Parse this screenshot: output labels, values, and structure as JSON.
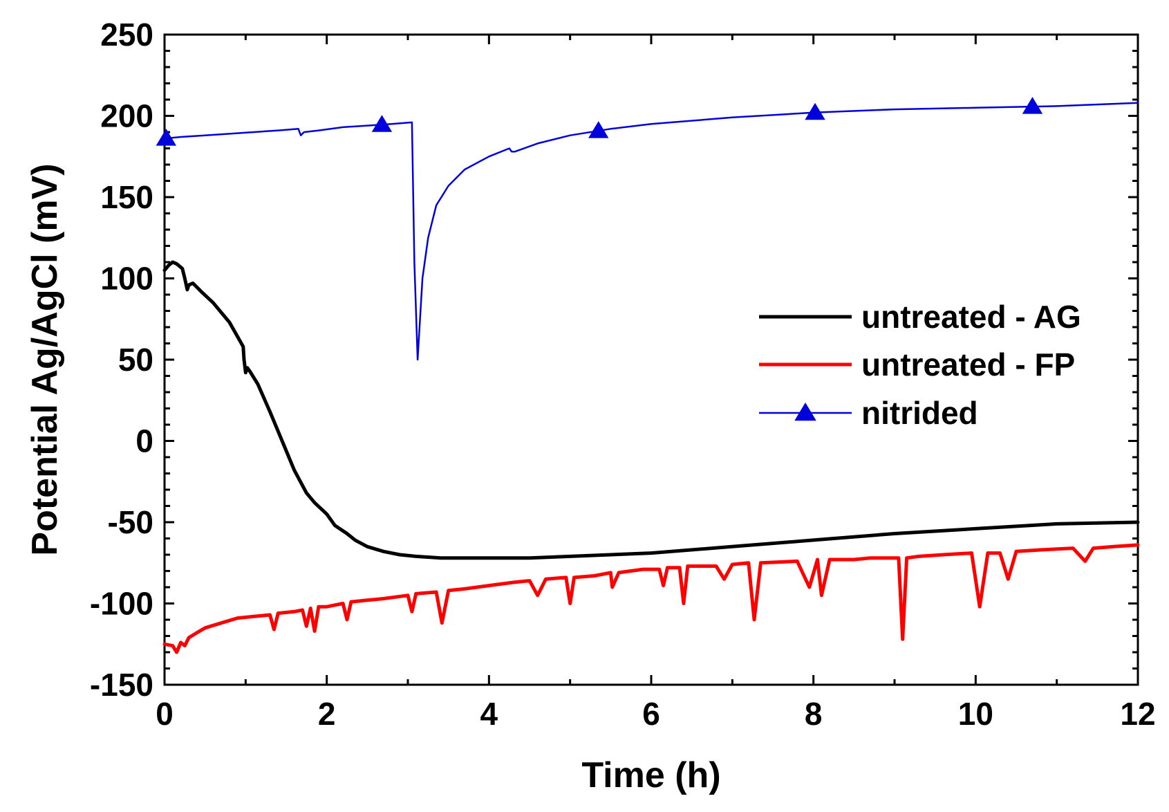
{
  "chart_data": {
    "type": "line",
    "title": "",
    "xlabel": "Time (h)",
    "ylabel": "Potential Ag/AgCl (mV)",
    "xlim": [
      0,
      12
    ],
    "ylim": [
      -150,
      250
    ],
    "xticks": [
      "0",
      "2",
      "4",
      "6",
      "8",
      "10",
      "12"
    ],
    "xtick_values": [
      0,
      2,
      4,
      6,
      8,
      10,
      12
    ],
    "yticks": [
      "250",
      "200",
      "150",
      "100",
      "50",
      "0",
      "-50",
      "-100",
      "-150"
    ],
    "ytick_values": [
      250,
      200,
      150,
      100,
      50,
      0,
      -50,
      -100,
      -150
    ],
    "grid": false,
    "legend_position": "center-right",
    "series": [
      {
        "name": "untreated - AG",
        "color": "#000000",
        "marker": "none",
        "x": [
          0,
          0.05,
          0.1,
          0.15,
          0.22,
          0.25,
          0.28,
          0.3,
          0.35,
          0.45,
          0.6,
          0.8,
          0.97,
          0.98,
          1.0,
          1.02,
          1.05,
          1.15,
          1.3,
          1.45,
          1.6,
          1.75,
          1.85,
          2.0,
          2.1,
          2.25,
          2.35,
          2.5,
          2.7,
          2.9,
          3.1,
          3.4,
          3.7,
          4.0,
          4.5,
          5.0,
          6.0,
          7.0,
          8.0,
          9.0,
          10.0,
          11.0,
          12.0
        ],
        "y": [
          105,
          108,
          110,
          109,
          106,
          100,
          93,
          96,
          97,
          92,
          85,
          73,
          58,
          50,
          42,
          45,
          43,
          35,
          18,
          0,
          -18,
          -32,
          -38,
          -45,
          -52,
          -57,
          -61,
          -65,
          -68,
          -70,
          -71,
          -72,
          -72,
          -72,
          -72,
          -71,
          -69,
          -65,
          -61,
          -57,
          -54,
          -51,
          -50
        ]
      },
      {
        "name": "untreated - FP",
        "color": "#ff0000",
        "marker": "none",
        "x": [
          0,
          0.1,
          0.15,
          0.2,
          0.25,
          0.3,
          0.4,
          0.5,
          0.7,
          0.9,
          1.1,
          1.3,
          1.35,
          1.4,
          1.6,
          1.7,
          1.75,
          1.8,
          1.85,
          1.9,
          2.0,
          2.2,
          2.25,
          2.3,
          2.5,
          2.7,
          3.0,
          3.05,
          3.1,
          3.35,
          3.42,
          3.5,
          3.7,
          3.85,
          4.0,
          4.3,
          4.5,
          4.6,
          4.7,
          4.95,
          5.0,
          5.05,
          5.3,
          5.5,
          5.52,
          5.6,
          5.9,
          6.1,
          6.15,
          6.2,
          6.35,
          6.4,
          6.45,
          6.8,
          6.9,
          7.0,
          7.2,
          7.27,
          7.35,
          7.8,
          7.95,
          8.05,
          8.1,
          8.2,
          8.5,
          8.7,
          8.9,
          9.05,
          9.1,
          9.15,
          9.3,
          9.6,
          9.95,
          10.05,
          10.15,
          10.3,
          10.4,
          10.5,
          10.8,
          11.2,
          11.35,
          11.45,
          11.7,
          12.0
        ],
        "y": [
          -125,
          -126,
          -130,
          -124,
          -126,
          -121,
          -118,
          -115,
          -112,
          -109,
          -108,
          -107,
          -116,
          -106,
          -105,
          -104,
          -114,
          -103,
          -117,
          -102,
          -102,
          -100,
          -110,
          -99,
          -98,
          -97,
          -95,
          -105,
          -94,
          -93,
          -112,
          -92,
          -91,
          -90,
          -89,
          -87,
          -86,
          -95,
          -85,
          -84,
          -100,
          -84,
          -83,
          -81,
          -90,
          -81,
          -79,
          -79,
          -89,
          -78,
          -78,
          -100,
          -77,
          -77,
          -85,
          -76,
          -75,
          -110,
          -75,
          -74,
          -90,
          -73,
          -95,
          -73,
          -73,
          -72,
          -72,
          -72,
          -122,
          -72,
          -71,
          -70,
          -69,
          -102,
          -69,
          -69,
          -85,
          -68,
          -67,
          -66,
          -74,
          -66,
          -65,
          -64
        ]
      },
      {
        "name": "nitrided",
        "color": "#0000dd",
        "marker": "triangle",
        "marker_x": [
          0.02,
          2.68,
          5.35,
          8.02,
          10.7
        ],
        "x": [
          0,
          0.2,
          0.5,
          0.8,
          1.1,
          1.4,
          1.65,
          1.68,
          1.72,
          1.9,
          2.2,
          2.5,
          2.8,
          3.05,
          3.08,
          3.12,
          3.18,
          3.25,
          3.35,
          3.5,
          3.7,
          4.0,
          4.25,
          4.28,
          4.32,
          4.6,
          5.0,
          5.5,
          6.0,
          7.0,
          8.0,
          9.0,
          10.0,
          11.0,
          12.0
        ],
        "y": [
          186,
          187,
          188,
          189,
          190,
          191,
          192,
          188,
          190,
          191,
          193,
          194,
          195,
          196,
          110,
          50,
          100,
          125,
          145,
          157,
          167,
          175,
          180,
          178,
          178,
          183,
          188,
          192,
          195,
          199,
          202,
          204,
          205,
          206,
          208
        ]
      }
    ]
  }
}
